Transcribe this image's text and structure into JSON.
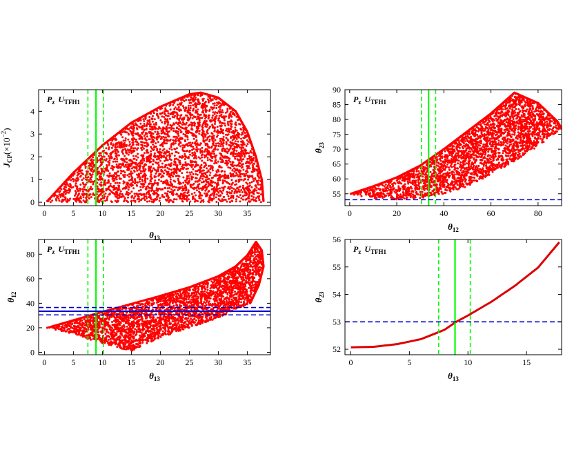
{
  "chart_data": [
    {
      "type": "scatter",
      "panel": "top-left",
      "annotation": {
        "main": "P",
        "main_sub": "z",
        "matrix": "U",
        "matrix_sub": "TFH1"
      },
      "xlabel": {
        "symbol": "θ",
        "sub": "13"
      },
      "ylabel": {
        "text": "J",
        "sub": "CP",
        "suffix": "(×10",
        "sup": "−2",
        "close": ")"
      },
      "xlim": [
        -1,
        39
      ],
      "ylim": [
        -0.15,
        4.95
      ],
      "xticks": [
        0,
        5,
        10,
        15,
        20,
        25,
        30,
        35
      ],
      "yticks": [
        0,
        1,
        2,
        3,
        4
      ],
      "grid": false,
      "colors": {
        "points": "#ff0000",
        "theta13_bounds": "#00ff00",
        "theta_bounds": "#0000cc"
      },
      "vlines": [
        {
          "x": 7.5,
          "style": "dashed",
          "color": "#00ff00"
        },
        {
          "x": 8.9,
          "style": "solid",
          "color": "#00ff00"
        },
        {
          "x": 10.2,
          "style": "dashed",
          "color": "#00ff00"
        }
      ],
      "hlines": [],
      "series": [
        {
          "kind": "scatter_region",
          "color": "#ff0000",
          "n_points": 3400,
          "x_range": [
            0.5,
            37.8
          ],
          "upper_boundary": [
            [
              0.5,
              0.05
            ],
            [
              5,
              1.3
            ],
            [
              10,
              2.5
            ],
            [
              15,
              3.5
            ],
            [
              20,
              4.2
            ],
            [
              25,
              4.75
            ],
            [
              27,
              4.82
            ],
            [
              30,
              4.6
            ],
            [
              33,
              4.0
            ],
            [
              35,
              3.1
            ],
            [
              36.5,
              2.0
            ],
            [
              37.5,
              1.0
            ],
            [
              37.8,
              0.05
            ]
          ],
          "lower_boundary": [
            [
              0.5,
              0
            ],
            [
              37.8,
              0
            ]
          ]
        }
      ]
    },
    {
      "type": "scatter",
      "panel": "top-right",
      "annotation": {
        "main": "P",
        "main_sub": "z",
        "matrix": "U",
        "matrix_sub": "TFH1"
      },
      "xlabel": {
        "symbol": "θ",
        "sub": "12"
      },
      "ylabel": {
        "symbol": "θ",
        "sub": "23"
      },
      "xlim": [
        -2,
        90
      ],
      "ylim": [
        51,
        90
      ],
      "xticks": [
        0,
        20,
        40,
        60,
        80
      ],
      "yticks": [
        55,
        60,
        65,
        70,
        75,
        80,
        85,
        90
      ],
      "grid": false,
      "colors": {
        "points": "#ff0000",
        "theta12_bounds": "#00ff00",
        "theta23_bound": "#0000cc"
      },
      "vlines": [
        {
          "x": 30.5,
          "style": "dashed",
          "color": "#00ff00"
        },
        {
          "x": 33.5,
          "style": "solid",
          "color": "#00ff00"
        },
        {
          "x": 36.5,
          "style": "dashed",
          "color": "#00ff00"
        }
      ],
      "hlines": [
        {
          "y": 53,
          "style": "dashed",
          "color": "#0000cc"
        }
      ],
      "series": [
        {
          "kind": "scatter_region",
          "color": "#ff0000",
          "n_points": 3000,
          "x_range": [
            0.5,
            90
          ],
          "upper_boundary": [
            [
              0.5,
              55
            ],
            [
              10,
              57.5
            ],
            [
              20,
              60.5
            ],
            [
              30,
              64.5
            ],
            [
              40,
              70
            ],
            [
              50,
              76
            ],
            [
              60,
              82
            ],
            [
              65,
              85.5
            ],
            [
              70,
              89
            ]
          ],
          "right_boundary": [
            [
              70,
              89
            ],
            [
              80,
              85.5
            ],
            [
              88,
              79.5
            ],
            [
              90,
              77
            ]
          ],
          "lower_boundary": [
            [
              0.5,
              54.8
            ],
            [
              10,
              53.5
            ],
            [
              20,
              53
            ],
            [
              30,
              53.5
            ],
            [
              40,
              55
            ],
            [
              50,
              57.5
            ],
            [
              60,
              61.5
            ],
            [
              70,
              66
            ],
            [
              80,
              71
            ],
            [
              90,
              77
            ]
          ]
        }
      ]
    },
    {
      "type": "scatter",
      "panel": "bottom-left",
      "annotation": {
        "main": "P",
        "main_sub": "z",
        "matrix": "U",
        "matrix_sub": "TFH1"
      },
      "xlabel": {
        "symbol": "θ",
        "sub": "13"
      },
      "ylabel": {
        "symbol": "θ",
        "sub": "12"
      },
      "xlim": [
        -1,
        39
      ],
      "ylim": [
        -2,
        92
      ],
      "xticks": [
        0,
        5,
        10,
        15,
        20,
        25,
        30,
        35
      ],
      "yticks": [
        0,
        20,
        40,
        60,
        80
      ],
      "grid": false,
      "colors": {
        "points": "#ff0000",
        "theta13_bounds": "#00ff00",
        "theta12_bounds": "#0000cc"
      },
      "vlines": [
        {
          "x": 7.5,
          "style": "dashed",
          "color": "#00ff00"
        },
        {
          "x": 8.9,
          "style": "solid",
          "color": "#00ff00"
        },
        {
          "x": 10.2,
          "style": "dashed",
          "color": "#00ff00"
        }
      ],
      "hlines": [
        {
          "y": 30.5,
          "style": "dashed",
          "color": "#0000cc"
        },
        {
          "y": 33.5,
          "style": "solid",
          "color": "#0000cc"
        },
        {
          "y": 36.5,
          "style": "dashed",
          "color": "#0000cc"
        }
      ],
      "series": [
        {
          "kind": "scatter_region",
          "color": "#ff0000",
          "n_points": 3400,
          "x_range": [
            0.5,
            37.8
          ],
          "upper_boundary": [
            [
              0.5,
              20
            ],
            [
              10,
              33
            ],
            [
              20,
              46
            ],
            [
              25,
              53
            ],
            [
              30,
              62
            ],
            [
              33,
              70
            ],
            [
              35,
              79
            ],
            [
              36.5,
              90
            ]
          ],
          "right_boundary": [
            [
              36.5,
              90
            ],
            [
              37.5,
              83
            ],
            [
              37.8,
              70
            ],
            [
              37,
              55
            ],
            [
              35.5,
              40
            ]
          ],
          "lower_boundary": [
            [
              0.5,
              20
            ],
            [
              5,
              15
            ],
            [
              10,
              7
            ],
            [
              15,
              1
            ],
            [
              20,
              12
            ],
            [
              25,
              20
            ],
            [
              30,
              28
            ],
            [
              35.5,
              40
            ]
          ]
        }
      ]
    },
    {
      "type": "line",
      "panel": "bottom-right",
      "annotation": {
        "main": "P",
        "main_sub": "z",
        "matrix": "U",
        "matrix_sub": "TFH1"
      },
      "xlabel": {
        "symbol": "θ",
        "sub": "13"
      },
      "ylabel": {
        "symbol": "θ",
        "sub": "23"
      },
      "xlim": [
        -0.5,
        18
      ],
      "ylim": [
        51.8,
        56
      ],
      "xticks": [
        0,
        5,
        10,
        15
      ],
      "yticks": [
        52,
        53,
        54,
        55,
        56
      ],
      "grid": false,
      "colors": {
        "curve": "#dd0000",
        "theta13_bounds": "#00ff00",
        "theta23_bound": "#0000cc"
      },
      "vlines": [
        {
          "x": 7.5,
          "style": "dashed",
          "color": "#00ff00"
        },
        {
          "x": 8.9,
          "style": "solid",
          "color": "#00ff00"
        },
        {
          "x": 10.2,
          "style": "dashed",
          "color": "#00ff00"
        }
      ],
      "hlines": [
        {
          "y": 53,
          "style": "dashed",
          "color": "#0000cc"
        }
      ],
      "series": [
        {
          "kind": "curve",
          "color": "#dd0000",
          "x": [
            0,
            2,
            4,
            6,
            8,
            9,
            10,
            12,
            14,
            16,
            17.8
          ],
          "y": [
            52.07,
            52.09,
            52.19,
            52.37,
            52.71,
            53.0,
            53.23,
            53.73,
            54.31,
            54.98,
            55.9
          ]
        }
      ]
    }
  ]
}
